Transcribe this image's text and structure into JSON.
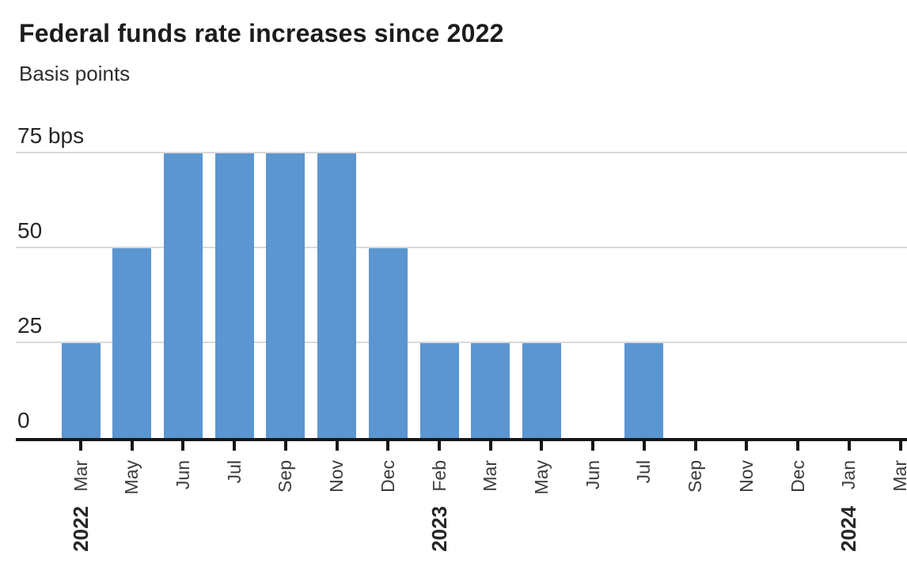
{
  "header": {
    "title": "Federal funds rate increases since 2022",
    "subtitle": "Basis points"
  },
  "chart_data": {
    "type": "bar",
    "title": "Federal funds rate increases since 2022",
    "subtitle": "Basis points",
    "unit": "bps",
    "ylabel": "Basis points",
    "xlabel": "",
    "ylim": [
      0,
      75
    ],
    "grid": true,
    "legend": false,
    "bar_color": "#5b96d1",
    "grid_color": "#d9d9d9",
    "axis_color": "#161616",
    "yticks": [
      {
        "value": 0,
        "label": "0"
      },
      {
        "value": 25,
        "label": "25"
      },
      {
        "value": 50,
        "label": "50"
      },
      {
        "value": 75,
        "label": "75 bps"
      }
    ],
    "categories": [
      {
        "month": "Mar",
        "year": "2022"
      },
      {
        "month": "May"
      },
      {
        "month": "Jun"
      },
      {
        "month": "Jul"
      },
      {
        "month": "Sep"
      },
      {
        "month": "Nov"
      },
      {
        "month": "Dec"
      },
      {
        "month": "Feb",
        "year": "2023"
      },
      {
        "month": "Mar"
      },
      {
        "month": "May"
      },
      {
        "month": "Jun"
      },
      {
        "month": "Jul"
      },
      {
        "month": "Sep"
      },
      {
        "month": "Nov"
      },
      {
        "month": "Dec"
      },
      {
        "month": "Jan",
        "year": "2024"
      },
      {
        "month": "Mar"
      }
    ],
    "values": [
      25,
      50,
      75,
      75,
      75,
      75,
      50,
      25,
      25,
      25,
      0,
      25,
      0,
      0,
      0,
      0,
      0
    ]
  }
}
